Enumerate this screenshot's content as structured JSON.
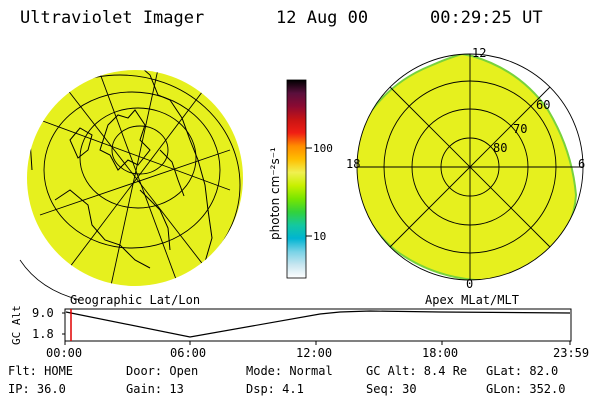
{
  "header": {
    "title": "Ultraviolet Imager",
    "date": "12 Aug 00",
    "time": "00:29:25 UT"
  },
  "left_panel": {
    "label": "Geographic Lat/Lon"
  },
  "right_panel": {
    "label": "Apex MLat/MLT",
    "mlt_labels": [
      "12",
      "18",
      "6",
      "0"
    ],
    "lat_labels": [
      "60",
      "70",
      "80"
    ]
  },
  "colorbar": {
    "unit_label": "photon cm⁻²s⁻¹",
    "ticks": [
      "100",
      "10"
    ],
    "colors": [
      "#000000",
      "#5a0f3c",
      "#8c0a32",
      "#c81414",
      "#f01e14",
      "#ff8c00",
      "#ffbe00",
      "#f0f050",
      "#c8f000",
      "#78e600",
      "#32d23c",
      "#14c8a0",
      "#00b4d2",
      "#78d2e6",
      "#c8e6f0",
      "#ffffff"
    ]
  },
  "altitude_plot": {
    "ylabel": "GC Alt",
    "yticks": [
      "9.0",
      "1.8"
    ],
    "xticks": [
      "00:00",
      "06:00",
      "12:00",
      "18:00",
      "23:59"
    ],
    "marker_color": "#e00000"
  },
  "info": {
    "row1": [
      "Flt: HOME",
      "Door: Open",
      "Mode: Normal",
      "GC Alt: 8.4 Re",
      "GLat:  82.0"
    ],
    "row2": [
      "IP: 36.0",
      "Gain: 13",
      "Dsp:    4.1",
      "Seq: 30",
      "GLon: 352.0"
    ]
  },
  "colors": {
    "aurora_fill": "#e6f01e",
    "aurora_edge": "#78d23c"
  }
}
